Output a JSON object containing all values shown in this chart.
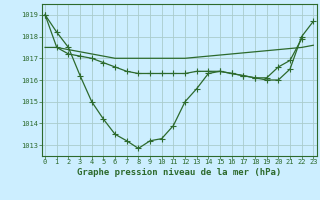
{
  "title": "Graphe pression niveau de la mer (hPa)",
  "bg_color": "#cceeff",
  "grid_color": "#aacccc",
  "line_color": "#2d6a2d",
  "ylim": [
    1012.5,
    1019.5
  ],
  "xlim": [
    -0.3,
    23.3
  ],
  "yticks": [
    1013,
    1014,
    1015,
    1016,
    1017,
    1018,
    1019
  ],
  "xticks": [
    0,
    1,
    2,
    3,
    4,
    5,
    6,
    7,
    8,
    9,
    10,
    11,
    12,
    13,
    14,
    15,
    16,
    17,
    18,
    19,
    20,
    21,
    22,
    23
  ],
  "series1": [
    1019.0,
    1018.2,
    1017.5,
    1016.2,
    1015.0,
    1014.2,
    1013.5,
    1013.2,
    1012.85,
    1013.2,
    1013.3,
    1013.9,
    1015.0,
    1015.6,
    1016.3,
    1016.4,
    1016.3,
    1016.2,
    1016.1,
    1016.1,
    1016.6,
    1016.9,
    1017.9,
    1018.6
  ],
  "series2": [
    1017.5,
    1017.5,
    1017.4,
    1017.3,
    1017.2,
    1017.1,
    1017.0,
    1017.0,
    1017.0,
    1017.0,
    1017.0,
    1017.0,
    1017.0,
    1017.05,
    1017.1,
    1017.15,
    1017.2,
    1017.25,
    1017.3,
    1017.35,
    1017.4,
    1017.45,
    1017.5,
    1017.6
  ],
  "series3": [
    1019.0,
    1017.5,
    1017.2,
    1017.1,
    1017.0,
    1016.8,
    1016.6,
    1016.4,
    1016.3,
    1016.3,
    1016.3,
    1016.3,
    1016.3,
    1016.4,
    1016.4,
    1016.4,
    1016.3,
    1016.2,
    1016.1,
    1016.0,
    1016.0,
    1016.5,
    1018.0,
    1018.7
  ],
  "title_fontsize": 6.5,
  "tick_fontsize": 5.0
}
